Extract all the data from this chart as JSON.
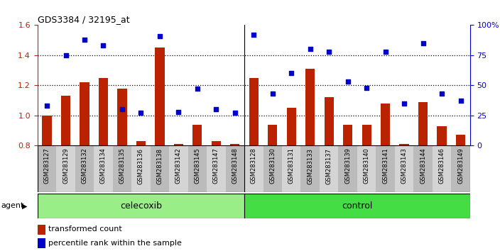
{
  "title": "GDS3384 / 32195_at",
  "samples": [
    "GSM283127",
    "GSM283129",
    "GSM283132",
    "GSM283134",
    "GSM283135",
    "GSM283136",
    "GSM283138",
    "GSM283142",
    "GSM283145",
    "GSM283147",
    "GSM283148",
    "GSM283128",
    "GSM283130",
    "GSM283131",
    "GSM283133",
    "GSM283137",
    "GSM283139",
    "GSM283140",
    "GSM283141",
    "GSM283143",
    "GSM283144",
    "GSM283146",
    "GSM283149"
  ],
  "bar_values": [
    1.0,
    1.13,
    1.22,
    1.25,
    1.18,
    0.83,
    1.45,
    0.81,
    0.94,
    0.83,
    0.81,
    1.25,
    0.94,
    1.05,
    1.31,
    1.12,
    0.94,
    0.94,
    1.08,
    0.81,
    1.09,
    0.93,
    0.87
  ],
  "dot_values": [
    33,
    75,
    88,
    83,
    30,
    27,
    91,
    28,
    47,
    30,
    27,
    92,
    43,
    60,
    80,
    78,
    53,
    48,
    78,
    35,
    85,
    43,
    37
  ],
  "celecoxib_count": 11,
  "control_count": 12,
  "bar_color": "#bb2200",
  "dot_color": "#0000cc",
  "celecoxib_color": "#99ee88",
  "control_color": "#44dd44",
  "strip_colors": [
    "#bbbbbb",
    "#d4d4d4"
  ],
  "ylim_left": [
    0.8,
    1.6
  ],
  "ylim_right": [
    0,
    100
  ],
  "yticks_left": [
    0.8,
    1.0,
    1.2,
    1.4,
    1.6
  ],
  "yticks_right": [
    0,
    25,
    50,
    75,
    100
  ],
  "ytick_right_labels": [
    "0",
    "25",
    "50",
    "75",
    "100%"
  ],
  "agent_label": "agent",
  "celecoxib_label": "celecoxib",
  "control_label": "control",
  "legend_bar": "transformed count",
  "legend_dot": "percentile rank within the sample"
}
